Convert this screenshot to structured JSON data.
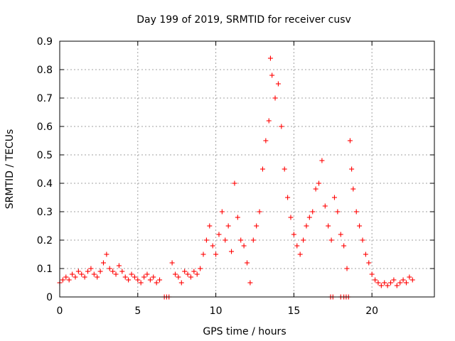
{
  "chart_data": {
    "type": "scatter",
    "title": "Day 199 of 2019, SRMTID for receiver cusv",
    "xlabel": "GPS time / hours",
    "ylabel": "SRMTID / TECUs",
    "xlim": [
      0,
      24
    ],
    "ylim": [
      0,
      0.9
    ],
    "x_ticks": [
      0,
      5,
      10,
      15,
      20
    ],
    "y_ticks": [
      0,
      0.1,
      0.2,
      0.3,
      0.4,
      0.5,
      0.6,
      0.7,
      0.8,
      0.9
    ],
    "grid": true,
    "marker": "plus",
    "color": "#ff0000",
    "series": [
      {
        "name": "SRMTID",
        "x": [
          0.0,
          0.2,
          0.4,
          0.6,
          0.8,
          1.0,
          1.2,
          1.4,
          1.6,
          1.8,
          2.0,
          2.2,
          2.4,
          2.6,
          2.8,
          3.0,
          3.2,
          3.4,
          3.6,
          3.8,
          4.0,
          4.2,
          4.4,
          4.6,
          4.8,
          5.0,
          5.2,
          5.4,
          5.6,
          5.8,
          6.0,
          6.2,
          6.4,
          7.2,
          7.4,
          7.6,
          7.8,
          8.0,
          8.2,
          8.4,
          8.6,
          8.8,
          9.0,
          9.2,
          9.4,
          9.6,
          9.8,
          10.0,
          10.2,
          10.4,
          10.6,
          10.8,
          11.0,
          11.2,
          11.4,
          11.6,
          11.8,
          12.0,
          12.2,
          12.4,
          12.6,
          12.8,
          13.0,
          13.2,
          13.4,
          13.5,
          13.6,
          13.8,
          14.0,
          14.2,
          14.4,
          14.6,
          14.8,
          15.0,
          15.2,
          15.4,
          15.6,
          15.8,
          16.0,
          16.2,
          16.4,
          16.6,
          16.8,
          17.0,
          17.2,
          17.4,
          17.6,
          17.8,
          18.0,
          18.2,
          18.4,
          18.6,
          18.7,
          18.8,
          19.0,
          19.2,
          19.4,
          19.6,
          19.8,
          20.0,
          20.2,
          20.4,
          20.6,
          20.8,
          21.0,
          21.2,
          21.4,
          21.6,
          21.8,
          22.0,
          22.2,
          22.4,
          22.6
        ],
        "y": [
          0.05,
          0.06,
          0.07,
          0.06,
          0.08,
          0.07,
          0.09,
          0.08,
          0.07,
          0.09,
          0.1,
          0.08,
          0.07,
          0.09,
          0.12,
          0.15,
          0.1,
          0.09,
          0.08,
          0.11,
          0.09,
          0.07,
          0.06,
          0.08,
          0.07,
          0.06,
          0.05,
          0.07,
          0.08,
          0.06,
          0.07,
          0.05,
          0.06,
          0.12,
          0.08,
          0.07,
          0.05,
          0.09,
          0.08,
          0.07,
          0.09,
          0.08,
          0.1,
          0.15,
          0.2,
          0.25,
          0.18,
          0.15,
          0.22,
          0.3,
          0.2,
          0.25,
          0.16,
          0.4,
          0.28,
          0.2,
          0.18,
          0.12,
          0.05,
          0.2,
          0.25,
          0.3,
          0.45,
          0.55,
          0.62,
          0.84,
          0.78,
          0.7,
          0.75,
          0.6,
          0.45,
          0.35,
          0.28,
          0.22,
          0.18,
          0.15,
          0.2,
          0.25,
          0.28,
          0.3,
          0.38,
          0.4,
          0.48,
          0.32,
          0.25,
          0.2,
          0.35,
          0.3,
          0.22,
          0.18,
          0.1,
          0.55,
          0.45,
          0.38,
          0.3,
          0.25,
          0.2,
          0.15,
          0.12,
          0.08,
          0.06,
          0.05,
          0.04,
          0.05,
          0.04,
          0.05,
          0.06,
          0.04,
          0.05,
          0.06,
          0.05,
          0.07,
          0.06
        ],
        "zero_markers_x": [
          6.7,
          6.85,
          7.0,
          17.35,
          17.5,
          18.0,
          18.2,
          18.35,
          18.5
        ]
      }
    ]
  }
}
